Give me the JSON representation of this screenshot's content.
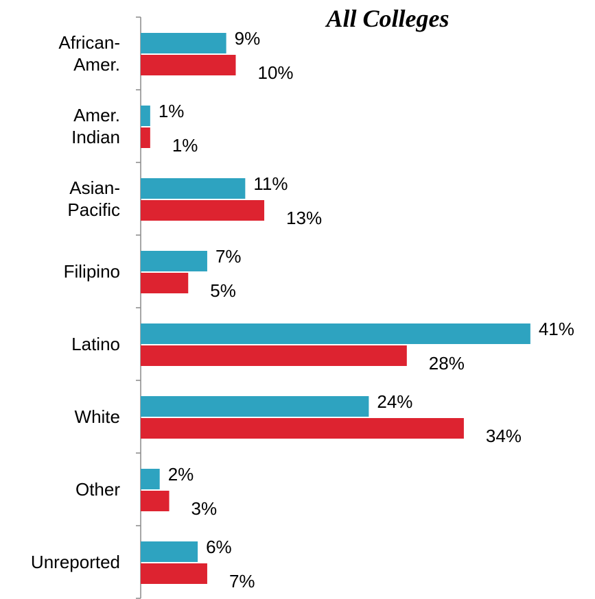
{
  "chart_data": {
    "type": "bar",
    "orientation": "horizontal",
    "title": "All Colleges",
    "categories": [
      "African-\nAmer.",
      "Amer.\nIndian",
      "Asian-\nPacific",
      "Filipino",
      "Latino",
      "White",
      "Other",
      "Unreported"
    ],
    "series": [
      {
        "color": "#2ea3c0",
        "values": [
          9,
          1,
          11,
          7,
          41,
          24,
          2,
          6
        ],
        "value_labels": [
          "9%",
          "1%",
          "11%",
          "7%",
          "41%",
          "24%",
          "2%",
          "6%"
        ]
      },
      {
        "color": "#dd2330",
        "values": [
          10,
          1,
          13,
          5,
          28,
          34,
          3,
          7
        ],
        "value_labels": [
          "10%",
          "1%",
          "13%",
          "5%",
          "28%",
          "34%",
          "3%",
          "7%"
        ]
      }
    ]
  }
}
